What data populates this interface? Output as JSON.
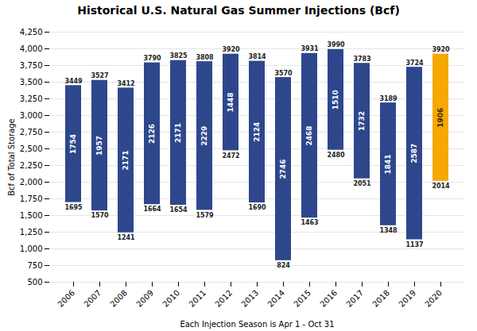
{
  "chart_data": {
    "type": "bar",
    "title": "Historical U.S. Natural Gas Summer Injections (Bcf)",
    "xlabel": "Each Injection Season is Apr 1 - Oct 31",
    "ylabel": "Bcf of Total Storage",
    "categories": [
      "2006",
      "2007",
      "2008",
      "2009",
      "2010",
      "2011",
      "2012",
      "2013",
      "2014",
      "2015",
      "2016",
      "2017",
      "2018",
      "2019",
      "2020"
    ],
    "top_values": [
      3449,
      3527,
      3412,
      3790,
      3825,
      3808,
      3920,
      3814,
      3570,
      3931,
      3990,
      3783,
      3189,
      3724,
      3920
    ],
    "mid_values": [
      1754,
      1957,
      2171,
      2126,
      2171,
      2229,
      1448,
      2124,
      2746,
      2468,
      1510,
      1732,
      1841,
      2587,
      1906
    ],
    "bottom_values": [
      1695,
      1570,
      1241,
      1664,
      1654,
      1579,
      2472,
      1690,
      824,
      1463,
      2480,
      2051,
      1348,
      1137,
      2014
    ],
    "colors": [
      "#2e478c",
      "#2e478c",
      "#2e478c",
      "#2e478c",
      "#2e478c",
      "#2e478c",
      "#2e478c",
      "#2e478c",
      "#2e478c",
      "#2e478c",
      "#2e478c",
      "#2e478c",
      "#2e478c",
      "#2e478c",
      "#f5a800"
    ],
    "ylim": [
      500,
      4250
    ],
    "yticks": [
      500,
      750,
      {
        "value": 1000,
        "label": "1,000"
      },
      {
        "value": 1250,
        "label": "1,250"
      },
      {
        "value": 1500,
        "label": "1,500"
      },
      {
        "value": 1750,
        "label": "1,750"
      },
      {
        "value": 2000,
        "label": "2,000"
      },
      {
        "value": 2250,
        "label": "2,250"
      },
      {
        "value": 2500,
        "label": "2,500"
      },
      {
        "value": 2750,
        "label": "2,750"
      },
      {
        "value": 3000,
        "label": "3,000"
      },
      {
        "value": 3250,
        "label": "3,250"
      },
      {
        "value": 3500,
        "label": "3,500"
      },
      {
        "value": 3750,
        "label": "3,750"
      },
      {
        "value": 4000,
        "label": "4,000"
      },
      {
        "value": 4250,
        "label": "4,250"
      }
    ],
    "grid": true,
    "data_labels": true
  }
}
